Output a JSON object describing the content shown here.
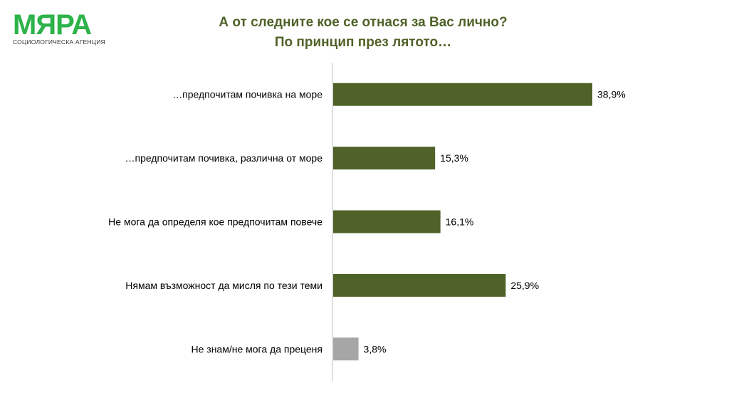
{
  "logo": {
    "name": "МЯРА",
    "tagline": "СОЦИОЛОГИЧЕСКА АГЕНЦИЯ"
  },
  "colors": {
    "primary_bar": "#4f6228",
    "muted_bar": "#a6a6a6",
    "title": "#4f6228",
    "logo": "#2db34a",
    "axis": "#bfbfbf",
    "label_text": "#000000"
  },
  "chart_data": {
    "type": "bar",
    "orientation": "horizontal",
    "title": "А от следните кое се отнася за Вас лично?",
    "subtitle": "По принцип през лятото…",
    "categories": [
      "…предпочитам почивка на море",
      "…предпочитам почивка, различна от море",
      "Не мога да определя кое предпочитам повече",
      "Нямам възможност да мисля по тези теми",
      "Не знам/не мога да преценя"
    ],
    "values": [
      38.9,
      15.3,
      16.1,
      25.9,
      3.8
    ],
    "value_labels": [
      "38,9%",
      "15,3%",
      "16,1%",
      "25,9%",
      "3,8%"
    ],
    "bar_colors": [
      "#4f6228",
      "#4f6228",
      "#4f6228",
      "#4f6228",
      "#a6a6a6"
    ],
    "xlim": [
      0,
      50
    ],
    "xlabel": "",
    "ylabel": "",
    "grid": false,
    "legend": "none"
  }
}
